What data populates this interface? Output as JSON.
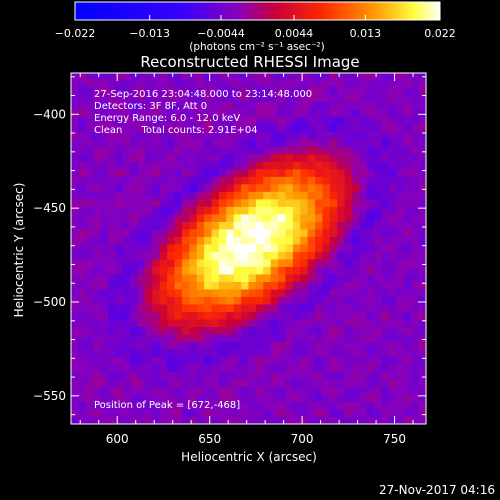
{
  "chart_data": {
    "type": "heatmap",
    "title": "Reconstructed RHESSI Image",
    "xlabel": "Heliocentric X (arcsec)",
    "ylabel": "Heliocentric Y (arcsec)",
    "xlim": [
      575,
      767
    ],
    "ylim": [
      -565,
      -378
    ],
    "x_ticks": [
      600,
      650,
      700,
      750
    ],
    "y_ticks": [
      -400,
      -450,
      -500,
      -550
    ],
    "colorbar": {
      "range": [
        -0.022,
        0.022
      ],
      "ticks": [
        -0.022,
        -0.013,
        -0.0044,
        0.0044,
        0.013,
        0.022
      ],
      "tick_labels": [
        "−0.022",
        "−0.013",
        "−0.0044",
        "0.0044",
        "0.013",
        "0.022"
      ],
      "unit": "(photons cm⁻² s⁻¹ asec⁻²)"
    },
    "annotations": [
      "27-Sep-2016 23:04:48.000 to 23:14:48.000",
      "Detectors: 3F 8F, Att 0",
      "Energy Range: 6.0 - 12.0 keV",
      "Clean      Total counts: 2.91E+04"
    ],
    "peak_label": "Position of Peak = [672,-468]",
    "peak": [
      672,
      -468
    ],
    "source": {
      "major_axis_arcsec": 120,
      "minor_axis_arcsec": 62,
      "orientation_deg": 38,
      "peak_flux": 0.022,
      "background_flux": -0.003
    }
  },
  "footer": {
    "timestamp": "27-Nov-2017 04:16"
  },
  "colors": {
    "background": "#000000",
    "foreground": "#ffffff"
  }
}
